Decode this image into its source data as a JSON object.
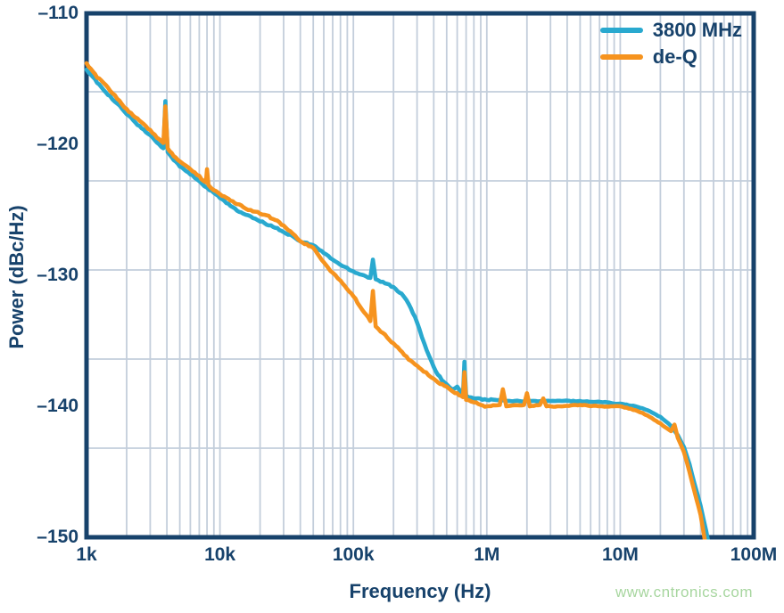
{
  "watermark": "www.cntronics.com",
  "colors": {
    "background": "#ffffff",
    "axis_navy": "#17426b",
    "gridline": "#c3cedb",
    "series_blue": "#29a9cf",
    "series_orange": "#f6931e",
    "watermark_green": "#a7d69f"
  },
  "chart_data": {
    "type": "line",
    "title": "",
    "xlabel": "Frequency (Hz)",
    "ylabel": "Power (dBc/Hz)",
    "x_scale": "log",
    "y_scale": "linear",
    "x_range_hz": [
      1000,
      100000000
    ],
    "y_range_db": [
      -150,
      -110
    ],
    "grid": true,
    "h_gridline_divisions": 6,
    "legend_position": "top-right",
    "x_ticks": [
      {
        "value": 1000,
        "label": "1k"
      },
      {
        "value": 10000,
        "label": "10k"
      },
      {
        "value": 100000,
        "label": "100k"
      },
      {
        "value": 1000000,
        "label": "1M"
      },
      {
        "value": 10000000,
        "label": "10M"
      },
      {
        "value": 100000000,
        "label": "100M"
      }
    ],
    "y_ticks": [
      {
        "value": -110,
        "label": "–110"
      },
      {
        "value": -120,
        "label": "–120"
      },
      {
        "value": -130,
        "label": "–130"
      },
      {
        "value": -140,
        "label": "–140"
      },
      {
        "value": -150,
        "label": "–150"
      }
    ],
    "series": [
      {
        "name": "3800 MHz",
        "color": "#29a9cf",
        "noise_db": 0.13,
        "points": [
          [
            1000,
            -114.3
          ],
          [
            1200,
            -115.3
          ],
          [
            1500,
            -116.3
          ],
          [
            2000,
            -117.7
          ],
          [
            2500,
            -118.6
          ],
          [
            3000,
            -119.3
          ],
          [
            3500,
            -120.0
          ],
          [
            3770,
            -120.3
          ],
          [
            3900,
            -116.7
          ],
          [
            4060,
            -120.6
          ],
          [
            4500,
            -121.2
          ],
          [
            5000,
            -121.7
          ],
          [
            6000,
            -122.3
          ],
          [
            7000,
            -122.8
          ],
          [
            8000,
            -123.3
          ],
          [
            9000,
            -123.7
          ],
          [
            10000,
            -124.1
          ],
          [
            12000,
            -124.7
          ],
          [
            15000,
            -125.3
          ],
          [
            20000,
            -125.9
          ],
          [
            25000,
            -126.3
          ],
          [
            30000,
            -126.7
          ],
          [
            35000,
            -127.0
          ],
          [
            40000,
            -127.4
          ],
          [
            50000,
            -127.7
          ],
          [
            60000,
            -128.3
          ],
          [
            70000,
            -128.8
          ],
          [
            80000,
            -129.2
          ],
          [
            100000,
            -129.7
          ],
          [
            120000,
            -130.0
          ],
          [
            134000,
            -130.2
          ],
          [
            140000,
            -128.8
          ],
          [
            147000,
            -130.3
          ],
          [
            160000,
            -130.5
          ],
          [
            200000,
            -130.9
          ],
          [
            230000,
            -131.4
          ],
          [
            260000,
            -132.2
          ],
          [
            300000,
            -133.6
          ],
          [
            340000,
            -135.2
          ],
          [
            400000,
            -137.0
          ],
          [
            460000,
            -138.0
          ],
          [
            520000,
            -138.5
          ],
          [
            560000,
            -138.7
          ],
          [
            600000,
            -138.5
          ],
          [
            640000,
            -139.0
          ],
          [
            663000,
            -139.1
          ],
          [
            680000,
            -136.6
          ],
          [
            700000,
            -139.2
          ],
          [
            800000,
            -139.4
          ],
          [
            1000000,
            -139.5
          ],
          [
            1500000,
            -139.6
          ],
          [
            2000000,
            -139.6
          ],
          [
            3000000,
            -139.6
          ],
          [
            5000000,
            -139.6
          ],
          [
            8000000,
            -139.7
          ],
          [
            10000000,
            -139.8
          ],
          [
            13000000,
            -140.0
          ],
          [
            16000000,
            -140.3
          ],
          [
            20000000,
            -140.8
          ],
          [
            24000000,
            -141.5
          ],
          [
            27000000,
            -142.2
          ],
          [
            30000000,
            -143.1
          ],
          [
            33000000,
            -144.4
          ],
          [
            36000000,
            -145.9
          ],
          [
            40000000,
            -147.6
          ],
          [
            44000000,
            -149.5
          ],
          [
            47000000,
            -151.0
          ]
        ]
      },
      {
        "name": "de-Q",
        "color": "#f6931e",
        "noise_db": 0.13,
        "points": [
          [
            1000,
            -113.8
          ],
          [
            1200,
            -114.9
          ],
          [
            1500,
            -115.9
          ],
          [
            2000,
            -117.3
          ],
          [
            2500,
            -118.2
          ],
          [
            3000,
            -118.9
          ],
          [
            3500,
            -119.6
          ],
          [
            3770,
            -119.9
          ],
          [
            3900,
            -117.1
          ],
          [
            4060,
            -120.3
          ],
          [
            4500,
            -120.9
          ],
          [
            5000,
            -121.3
          ],
          [
            5500,
            -121.6
          ],
          [
            6000,
            -121.9
          ],
          [
            7000,
            -122.4
          ],
          [
            7850,
            -122.9
          ],
          [
            8000,
            -121.9
          ],
          [
            8200,
            -123.1
          ],
          [
            9000,
            -123.5
          ],
          [
            10000,
            -123.8
          ],
          [
            12000,
            -124.3
          ],
          [
            15000,
            -124.8
          ],
          [
            20000,
            -125.3
          ],
          [
            25000,
            -125.7
          ],
          [
            30000,
            -126.2
          ],
          [
            35000,
            -126.8
          ],
          [
            40000,
            -127.4
          ],
          [
            50000,
            -127.9
          ],
          [
            60000,
            -129.0
          ],
          [
            70000,
            -129.8
          ],
          [
            80000,
            -130.4
          ],
          [
            100000,
            -131.6
          ],
          [
            120000,
            -132.8
          ],
          [
            134000,
            -133.5
          ],
          [
            140000,
            -131.2
          ],
          [
            147000,
            -133.9
          ],
          [
            160000,
            -134.3
          ],
          [
            200000,
            -135.2
          ],
          [
            250000,
            -136.2
          ],
          [
            300000,
            -136.9
          ],
          [
            350000,
            -137.4
          ],
          [
            400000,
            -137.9
          ],
          [
            500000,
            -138.5
          ],
          [
            600000,
            -139.0
          ],
          [
            663000,
            -139.3
          ],
          [
            680000,
            -137.4
          ],
          [
            700000,
            -139.5
          ],
          [
            800000,
            -139.7
          ],
          [
            900000,
            -139.9
          ],
          [
            1000000,
            -140.0
          ],
          [
            1250000,
            -139.9
          ],
          [
            1320000,
            -138.7
          ],
          [
            1400000,
            -140.0
          ],
          [
            1900000,
            -139.9
          ],
          [
            2000000,
            -139.0
          ],
          [
            2100000,
            -140.0
          ],
          [
            2500000,
            -139.9
          ],
          [
            2650000,
            -139.4
          ],
          [
            2800000,
            -140.0
          ],
          [
            3500000,
            -140.0
          ],
          [
            5000000,
            -139.9
          ],
          [
            7000000,
            -140.0
          ],
          [
            10000000,
            -140.0
          ],
          [
            13000000,
            -140.3
          ],
          [
            16000000,
            -140.7
          ],
          [
            20000000,
            -141.3
          ],
          [
            24000000,
            -141.9
          ],
          [
            25500000,
            -141.4
          ],
          [
            27000000,
            -142.4
          ],
          [
            30000000,
            -143.5
          ],
          [
            33000000,
            -145.0
          ],
          [
            36000000,
            -146.5
          ],
          [
            40000000,
            -148.3
          ],
          [
            43000000,
            -150.2
          ],
          [
            45000000,
            -151.2
          ]
        ]
      }
    ]
  }
}
